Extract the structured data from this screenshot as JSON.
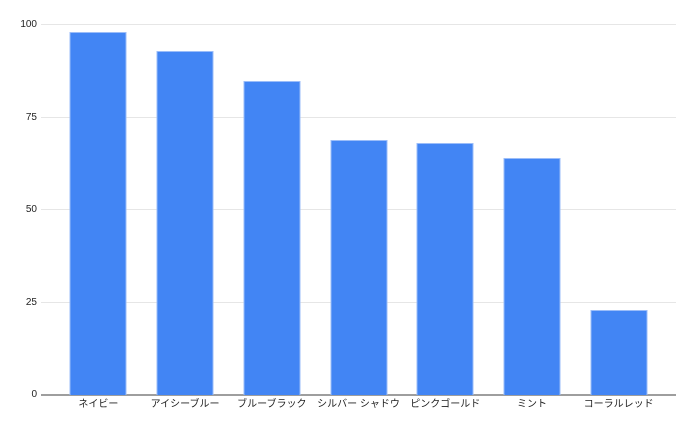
{
  "chart_data": {
    "type": "bar",
    "title": "",
    "xlabel": "",
    "ylabel": "",
    "categories": [
      "ネイビー",
      "アイシーブルー",
      "ブルーブラック",
      "シルバー シャドウ",
      "ピンクゴールド",
      "ミント",
      "コーラルレッド"
    ],
    "values": [
      98,
      93,
      85,
      69,
      68,
      64,
      23
    ],
    "ylim": [
      0,
      100
    ],
    "yticks": [
      0,
      25,
      50,
      75,
      100
    ],
    "grid": "horizontal",
    "legend_position": "none",
    "colors": {
      "background": "#ffffff",
      "bar_fill": "#4285f4",
      "bar_edge": "#9bbdf9",
      "gridline": "#e6e6e6",
      "axis_line": "#9e9e9e",
      "tick_label": "#1f1f1f"
    }
  }
}
